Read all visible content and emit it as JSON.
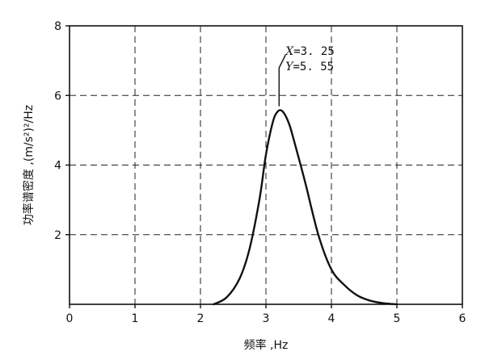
{
  "chart_data": {
    "type": "line",
    "xlabel": "频率 ,Hz",
    "ylabel": "功率谱密度 ,(m/s²)²/Hz",
    "xlim": [
      0,
      6
    ],
    "ylim": [
      0,
      8
    ],
    "x_ticks": [
      "0",
      "1",
      "2",
      "3",
      "4",
      "5",
      "6"
    ],
    "y_ticks": [
      "2",
      "4",
      "6",
      "8"
    ],
    "grid": true,
    "series": [
      {
        "x": [
          2.2,
          2.4,
          2.6,
          2.75,
          2.9,
          3.0,
          3.1,
          3.17,
          3.25,
          3.35,
          3.45,
          3.6,
          3.8,
          4.0,
          4.2,
          4.4,
          4.6,
          4.8,
          5.0
        ],
        "values": [
          0.0,
          0.2,
          0.75,
          1.6,
          3.0,
          4.3,
          5.2,
          5.52,
          5.55,
          5.2,
          4.55,
          3.5,
          2.0,
          1.0,
          0.55,
          0.25,
          0.1,
          0.03,
          0.0
        ]
      }
    ],
    "annotations": [
      {
        "x_label": "X",
        "x_text": "=3. 25",
        "y_label": "Y",
        "y_text": "=5. 55",
        "x": 3.25,
        "y": 5.55
      }
    ]
  }
}
